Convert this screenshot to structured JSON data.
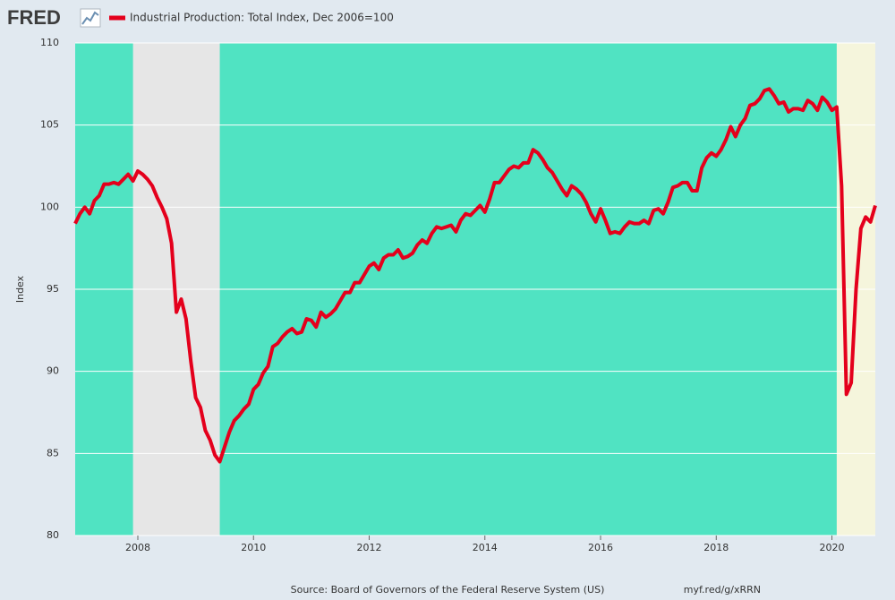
{
  "logo": "FRED",
  "chart_data": {
    "type": "line",
    "ylabel": "Index",
    "source": "Source: Board of Governors of the Federal Reserve System (US)",
    "link": "myf.red/g/xRRN",
    "plot_background": "#50e3c2",
    "grid": true,
    "shaded_periods": [
      {
        "start": 2007.917,
        "end": 2009.417,
        "color": "#e6e6e6"
      },
      {
        "start": 2020.083,
        "end": 2020.75,
        "color": "#f5f5dc"
      }
    ],
    "xlim": [
      2006.917,
      2020.75
    ],
    "xticks": [
      2008,
      2010,
      2012,
      2014,
      2016,
      2018,
      2020
    ],
    "ylim": [
      80,
      110
    ],
    "yticks": [
      80,
      85,
      90,
      95,
      100,
      105,
      110
    ],
    "x": [
      2006.917,
      2007,
      2007.083,
      2007.167,
      2007.25,
      2007.333,
      2007.417,
      2007.5,
      2007.583,
      2007.667,
      2007.75,
      2007.833,
      2007.917,
      2008,
      2008.083,
      2008.167,
      2008.25,
      2008.333,
      2008.417,
      2008.5,
      2008.583,
      2008.667,
      2008.75,
      2008.833,
      2008.917,
      2009,
      2009.083,
      2009.167,
      2009.25,
      2009.333,
      2009.417,
      2009.5,
      2009.583,
      2009.667,
      2009.75,
      2009.833,
      2009.917,
      2010,
      2010.083,
      2010.167,
      2010.25,
      2010.333,
      2010.417,
      2010.5,
      2010.583,
      2010.667,
      2010.75,
      2010.833,
      2010.917,
      2011,
      2011.083,
      2011.167,
      2011.25,
      2011.333,
      2011.417,
      2011.5,
      2011.583,
      2011.667,
      2011.75,
      2011.833,
      2011.917,
      2012,
      2012.083,
      2012.167,
      2012.25,
      2012.333,
      2012.417,
      2012.5,
      2012.583,
      2012.667,
      2012.75,
      2012.833,
      2012.917,
      2013,
      2013.083,
      2013.167,
      2013.25,
      2013.333,
      2013.417,
      2013.5,
      2013.583,
      2013.667,
      2013.75,
      2013.833,
      2013.917,
      2014,
      2014.083,
      2014.167,
      2014.25,
      2014.333,
      2014.417,
      2014.5,
      2014.583,
      2014.667,
      2014.75,
      2014.833,
      2014.917,
      2015,
      2015.083,
      2015.167,
      2015.25,
      2015.333,
      2015.417,
      2015.5,
      2015.583,
      2015.667,
      2015.75,
      2015.833,
      2015.917,
      2016,
      2016.083,
      2016.167,
      2016.25,
      2016.333,
      2016.417,
      2016.5,
      2016.583,
      2016.667,
      2016.75,
      2016.833,
      2016.917,
      2017,
      2017.083,
      2017.167,
      2017.25,
      2017.333,
      2017.417,
      2017.5,
      2017.583,
      2017.667,
      2017.75,
      2017.833,
      2017.917,
      2018,
      2018.083,
      2018.167,
      2018.25,
      2018.333,
      2018.417,
      2018.5,
      2018.583,
      2018.667,
      2018.75,
      2018.833,
      2018.917,
      2019,
      2019.083,
      2019.167,
      2019.25,
      2019.333,
      2019.417,
      2019.5,
      2019.583,
      2019.667,
      2019.75,
      2019.833,
      2019.917,
      2020,
      2020.083,
      2020.167,
      2020.25,
      2020.333,
      2020.417,
      2020.5,
      2020.583,
      2020.667,
      2020.75
    ],
    "series": [
      {
        "name": "Industrial Production: Total Index, Dec 2006=100",
        "color": "#e4001c",
        "values": [
          99.0,
          99.6,
          100.0,
          99.6,
          100.4,
          100.7,
          101.4,
          101.4,
          101.5,
          101.4,
          101.7,
          102.0,
          101.6,
          102.2,
          102.0,
          101.7,
          101.3,
          100.6,
          100.0,
          99.3,
          97.8,
          93.6,
          94.4,
          93.2,
          90.6,
          88.4,
          87.8,
          86.4,
          85.8,
          84.9,
          84.5,
          85.4,
          86.3,
          87.0,
          87.3,
          87.7,
          88.0,
          88.9,
          89.2,
          89.9,
          90.3,
          91.5,
          91.7,
          92.1,
          92.4,
          92.6,
          92.3,
          92.4,
          93.2,
          93.1,
          92.7,
          93.6,
          93.3,
          93.5,
          93.8,
          94.3,
          94.8,
          94.8,
          95.4,
          95.4,
          95.9,
          96.4,
          96.6,
          96.2,
          96.9,
          97.1,
          97.1,
          97.4,
          96.9,
          97.0,
          97.2,
          97.7,
          98.0,
          97.8,
          98.4,
          98.8,
          98.7,
          98.8,
          98.9,
          98.5,
          99.2,
          99.6,
          99.5,
          99.8,
          100.1,
          99.7,
          100.5,
          101.5,
          101.5,
          101.9,
          102.3,
          102.5,
          102.4,
          102.7,
          102.7,
          103.5,
          103.3,
          102.9,
          102.4,
          102.1,
          101.6,
          101.1,
          100.7,
          101.3,
          101.1,
          100.8,
          100.3,
          99.6,
          99.1,
          99.9,
          99.2,
          98.4,
          98.5,
          98.4,
          98.8,
          99.1,
          99.0,
          99.0,
          99.2,
          99.0,
          99.8,
          99.9,
          99.6,
          100.3,
          101.2,
          101.3,
          101.5,
          101.5,
          101.0,
          101.0,
          102.4,
          103.0,
          103.3,
          103.1,
          103.5,
          104.1,
          104.9,
          104.3,
          105.0,
          105.4,
          106.2,
          106.3,
          106.6,
          107.1,
          107.2,
          106.8,
          106.3,
          106.4,
          105.8,
          106.0,
          106.0,
          105.9,
          106.5,
          106.3,
          105.9,
          106.7,
          106.4,
          105.9,
          106.1,
          101.3,
          88.6,
          89.3,
          95.0,
          98.7,
          99.4,
          99.1,
          100.1
        ]
      }
    ]
  }
}
